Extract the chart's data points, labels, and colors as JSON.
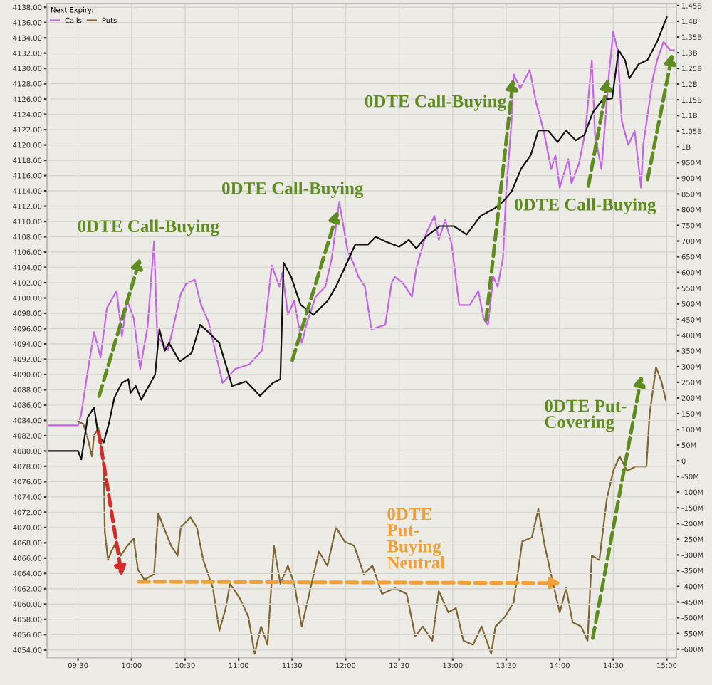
{
  "chart_data": {
    "type": "line",
    "legend_title": "Next Expiry:",
    "series": [
      {
        "color": "#111111",
        "x": [
          9.23,
          9.5,
          9.53,
          9.59,
          9.65,
          9.69,
          9.74,
          9.79,
          9.84,
          9.91,
          9.97,
          9.99,
          10.04,
          10.09,
          10.22,
          10.26,
          10.31,
          10.35,
          10.45,
          10.56,
          10.64,
          10.73,
          10.82,
          10.94,
          11.07,
          11.2,
          11.32,
          11.39,
          11.42,
          11.49,
          11.58,
          11.7,
          11.83,
          11.91,
          11.99,
          12.09,
          12.21,
          12.28,
          12.37,
          12.5,
          12.59,
          12.66,
          12.75,
          12.88,
          13.01,
          13.13,
          13.26,
          13.39,
          13.47,
          13.55,
          13.64,
          13.73,
          13.8,
          13.89,
          13.98,
          14.06,
          14.15,
          14.23,
          14.31,
          14.4,
          14.49,
          14.55,
          14.61,
          14.65,
          14.74,
          14.82,
          14.91,
          15.0
        ],
        "values": [
          4080,
          4080,
          4078.9,
          4084.4,
          4085.7,
          4082,
          4081.1,
          4083.7,
          4087,
          4088.9,
          4089.4,
          4087.6,
          4088.5,
          4086.7,
          4090,
          4095.9,
          4093.1,
          4094.1,
          4091.7,
          4092.8,
          4096.5,
          4095.4,
          4094.1,
          4088.5,
          4089.1,
          4087.2,
          4088.9,
          4089.4,
          4104.6,
          4102.8,
          4099.1,
          4097.8,
          4099.6,
          4101.5,
          4103.9,
          4107,
          4107,
          4108,
          4107.4,
          4106.7,
          4107.6,
          4106.5,
          4108,
          4109.4,
          4109.4,
          4108.3,
          4110.7,
          4111.7,
          4112.6,
          4113.9,
          4116.9,
          4118.7,
          4121.9,
          4121.9,
          4120.4,
          4121.9,
          4120.6,
          4121.3,
          4124.3,
          4125.9,
          4126.1,
          4132.4,
          4131.1,
          4128.7,
          4130.6,
          4131.1,
          4133.5,
          4136.7
        ]
      },
      {
        "name": "Calls",
        "color": "#c563e6",
        "axis": "y2",
        "x": [
          9.23,
          9.5,
          9.53,
          9.59,
          9.65,
          9.71,
          9.77,
          9.86,
          9.91,
          9.96,
          10.02,
          10.08,
          10.15,
          10.21,
          10.24,
          10.29,
          10.34,
          10.4,
          10.46,
          10.51,
          10.59,
          10.65,
          10.72,
          10.78,
          10.85,
          10.91,
          10.97,
          11.1,
          11.22,
          11.31,
          11.38,
          11.41,
          11.46,
          11.52,
          11.59,
          11.64,
          11.72,
          11.81,
          11.87,
          11.94,
          12.02,
          12.07,
          12.12,
          12.18,
          12.24,
          12.37,
          12.43,
          12.46,
          12.53,
          12.62,
          12.66,
          12.75,
          12.83,
          12.87,
          12.93,
          12.99,
          13.06,
          13.1,
          13.16,
          13.24,
          13.29,
          13.33,
          13.38,
          13.42,
          13.47,
          13.5,
          13.55,
          13.57,
          13.63,
          13.72,
          13.78,
          13.85,
          13.92,
          13.96,
          14.0,
          14.08,
          14.11,
          14.18,
          14.24,
          14.3,
          14.33,
          14.39,
          14.46,
          14.5,
          14.54,
          14.58,
          14.64,
          14.7,
          14.76,
          14.78,
          14.87,
          14.91,
          14.97,
          15.03,
          15.07
        ],
        "values": [
          113000000.0,
          113000000.0,
          149000000.0,
          284000000.0,
          410000000.0,
          329000000.0,
          487000000.0,
          541000000.0,
          397000000.0,
          510000000.0,
          455000000.0,
          293000000.0,
          428000000.0,
          699000000.0,
          397000000.0,
          374000000.0,
          352000000.0,
          442000000.0,
          532000000.0,
          564000000.0,
          577000000.0,
          496000000.0,
          442000000.0,
          352000000.0,
          248000000.0,
          271000000.0,
          293000000.0,
          307000000.0,
          352000000.0,
          622000000.0,
          555000000.0,
          600000000.0,
          465000000.0,
          510000000.0,
          374000000.0,
          442000000.0,
          523000000.0,
          555000000.0,
          645000000.0,
          825000000.0,
          667000000.0,
          631000000.0,
          586000000.0,
          555000000.0,
          419000000.0,
          433000000.0,
          568000000.0,
          586000000.0,
          568000000.0,
          523000000.0,
          613000000.0,
          722000000.0,
          780000000.0,
          704000000.0,
          767000000.0,
          690000000.0,
          496000000.0,
          496000000.0,
          496000000.0,
          541000000.0,
          451000000.0,
          433000000.0,
          586000000.0,
          555000000.0,
          645000000.0,
          857000000.0,
          1082000000.0,
          1231000000.0,
          1186000000.0,
          1245000000.0,
          1141000000.0,
          1051000000.0,
          929000000.0,
          974000000.0,
          870000000.0,
          961000000.0,
          884000000.0,
          947000000.0,
          1051000000.0,
          1276000000.0,
          1037000000.0,
          929000000.0,
          1231000000.0,
          1367000000.0,
          1308000000.0,
          1082000000.0,
          1006000000.0,
          1051000000.0,
          870000000.0,
          1006000000.0,
          1218000000.0,
          1276000000.0,
          1335000000.0,
          1308000000.0,
          1308000000.0
        ]
      },
      {
        "name": "Puts",
        "color": "#7d6431",
        "axis": "y2",
        "x": [
          9.5,
          9.55,
          9.59,
          9.63,
          9.65,
          9.69,
          9.74,
          9.75,
          9.78,
          9.81,
          9.86,
          9.9,
          9.96,
          10.02,
          10.06,
          10.12,
          10.21,
          10.25,
          10.3,
          10.37,
          10.43,
          10.46,
          10.55,
          10.61,
          10.67,
          10.76,
          10.82,
          10.88,
          10.92,
          11.01,
          11.09,
          11.15,
          11.21,
          11.27,
          11.33,
          11.39,
          11.46,
          11.52,
          11.59,
          11.66,
          11.75,
          11.83,
          11.91,
          11.99,
          12.08,
          12.17,
          12.25,
          12.34,
          12.46,
          12.57,
          12.65,
          12.72,
          12.81,
          12.87,
          12.96,
          13.03,
          13.1,
          13.19,
          13.27,
          13.36,
          13.4,
          13.49,
          13.57,
          13.65,
          13.74,
          13.8,
          13.86,
          13.93,
          14.0,
          14.06,
          14.12,
          14.2,
          14.26,
          14.3,
          14.37,
          14.44,
          14.5,
          14.56,
          14.63,
          14.71,
          14.81,
          14.84,
          14.9,
          14.95,
          14.99
        ],
        "values": [
          126000000.0,
          117000000.0,
          72000000.0,
          14000000.0,
          81000000.0,
          104000000.0,
          -18000000.0,
          -226000000.0,
          -316000000.0,
          -289000000.0,
          -257000000.0,
          -302000000.0,
          -271000000.0,
          -248000000.0,
          -347000000.0,
          -379000000.0,
          -361000000.0,
          -167000000.0,
          -212000000.0,
          -271000000.0,
          -302000000.0,
          -212000000.0,
          -180000000.0,
          -212000000.0,
          -316000000.0,
          -406000000.0,
          -541000000.0,
          -469000000.0,
          -392000000.0,
          -437000000.0,
          -496000000.0,
          -615000000.0,
          -528000000.0,
          -586000000.0,
          -271000000.0,
          -392000000.0,
          -334000000.0,
          -392000000.0,
          -528000000.0,
          -424000000.0,
          -289000000.0,
          -334000000.0,
          -212000000.0,
          -257000000.0,
          -271000000.0,
          -361000000.0,
          -334000000.0,
          -424000000.0,
          -406000000.0,
          -424000000.0,
          -559000000.0,
          -528000000.0,
          -573000000.0,
          -415000000.0,
          -483000000.0,
          -469000000.0,
          -573000000.0,
          -586000000.0,
          -528000000.0,
          -615000000.0,
          -528000000.0,
          -496000000.0,
          -451000000.0,
          -257000000.0,
          -244000000.0,
          -153000000.0,
          -271000000.0,
          -379000000.0,
          -483000000.0,
          -406000000.0,
          -514000000.0,
          -528000000.0,
          -573000000.0,
          -302000000.0,
          -316000000.0,
          -122000000.0,
          -32000000.0,
          14000000.0,
          -32000000.0,
          -18000000.0,
          -18000000.0,
          149000000.0,
          298000000.0,
          253000000.0,
          194000000.0
        ]
      }
    ],
    "xlim": [
      9.21,
      15.09
    ],
    "xticks": [
      {
        "value": 9.5,
        "label": "09:30"
      },
      {
        "value": 10,
        "label": "10:00"
      },
      {
        "value": 10.5,
        "label": "10:30"
      },
      {
        "value": 11,
        "label": "11:00"
      },
      {
        "value": 11.5,
        "label": "11:30"
      },
      {
        "value": 12,
        "label": "12:00"
      },
      {
        "value": 12.5,
        "label": "12:30"
      },
      {
        "value": 13,
        "label": "13:00"
      },
      {
        "value": 13.5,
        "label": "13:30"
      },
      {
        "value": 14,
        "label": "14:00"
      },
      {
        "value": 14.5,
        "label": "14:30"
      },
      {
        "value": 15,
        "label": "15:00"
      }
    ],
    "ylim": [
      4053,
      4138.5
    ],
    "yticks": [
      {
        "value": 4054,
        "label": "4054.00"
      },
      {
        "value": 4056,
        "label": "4056.00"
      },
      {
        "value": 4058,
        "label": "4058.00"
      },
      {
        "value": 4060,
        "label": "4060.00"
      },
      {
        "value": 4062,
        "label": "4062.00"
      },
      {
        "value": 4064,
        "label": "4064.00"
      },
      {
        "value": 4066,
        "label": "4066.00"
      },
      {
        "value": 4068,
        "label": "4068.00"
      },
      {
        "value": 4070,
        "label": "4070.00"
      },
      {
        "value": 4072,
        "label": "4072.00"
      },
      {
        "value": 4074,
        "label": "4074.00"
      },
      {
        "value": 4076,
        "label": "4076.00"
      },
      {
        "value": 4078,
        "label": "4078.00"
      },
      {
        "value": 4080,
        "label": "4080.00"
      },
      {
        "value": 4082,
        "label": "4082.00"
      },
      {
        "value": 4084,
        "label": "4084.00"
      },
      {
        "value": 4086,
        "label": "4086.00"
      },
      {
        "value": 4088,
        "label": "4088.00"
      },
      {
        "value": 4090,
        "label": "4090.00"
      },
      {
        "value": 4092,
        "label": "4092.00"
      },
      {
        "value": 4094,
        "label": "4094.00"
      },
      {
        "value": 4096,
        "label": "4096.00"
      },
      {
        "value": 4098,
        "label": "4098.00"
      },
      {
        "value": 4100,
        "label": "4100.00"
      },
      {
        "value": 4102,
        "label": "4102.00"
      },
      {
        "value": 4104,
        "label": "4104.00"
      },
      {
        "value": 4106,
        "label": "4106.00"
      },
      {
        "value": 4108,
        "label": "4108.00"
      },
      {
        "value": 4110,
        "label": "4110.00"
      },
      {
        "value": 4112,
        "label": "4112.00"
      },
      {
        "value": 4114,
        "label": "4114.00"
      },
      {
        "value": 4116,
        "label": "4116.00"
      },
      {
        "value": 4118,
        "label": "4118.00"
      },
      {
        "value": 4120,
        "label": "4120.00"
      },
      {
        "value": 4122,
        "label": "4122.00"
      },
      {
        "value": 4124,
        "label": "4124.00"
      },
      {
        "value": 4126,
        "label": "4126.00"
      },
      {
        "value": 4128,
        "label": "4128.00"
      },
      {
        "value": 4130,
        "label": "4130.00"
      },
      {
        "value": 4132,
        "label": "4132.00"
      },
      {
        "value": 4134,
        "label": "4134.00"
      },
      {
        "value": 4136,
        "label": "4136.00"
      },
      {
        "value": 4138,
        "label": "4138.00"
      }
    ],
    "y2lim": [
      -627000000.0,
      1457000000.0
    ],
    "y2ticks": [
      {
        "value": -600000000.0,
        "label": "-600M"
      },
      {
        "value": -550000000.0,
        "label": "-550M"
      },
      {
        "value": -500000000.0,
        "label": "-500M"
      },
      {
        "value": -450000000.0,
        "label": "-450M"
      },
      {
        "value": -400000000.0,
        "label": "-400M"
      },
      {
        "value": -350000000.0,
        "label": "-350M"
      },
      {
        "value": -300000000.0,
        "label": "-300M"
      },
      {
        "value": -250000000.0,
        "label": "-250M"
      },
      {
        "value": -200000000.0,
        "label": "-200M"
      },
      {
        "value": -150000000.0,
        "label": "-150M"
      },
      {
        "value": -100000000.0,
        "label": "-100M"
      },
      {
        "value": -50000000.0,
        "label": "-50M"
      },
      0,
      {
        "value": 50000000.0,
        "label": "50M"
      },
      {
        "value": 100000000.0,
        "label": "100M"
      },
      {
        "value": 150000000.0,
        "label": "150M"
      },
      {
        "value": 200000000.0,
        "label": "200M"
      },
      {
        "value": 250000000.0,
        "label": "250M"
      },
      {
        "value": 300000000.0,
        "label": "300M"
      },
      {
        "value": 350000000.0,
        "label": "350M"
      },
      {
        "value": 400000000.0,
        "label": "400M"
      },
      {
        "value": 450000000.0,
        "label": "450M"
      },
      {
        "value": 500000000.0,
        "label": "500M"
      },
      {
        "value": 550000000.0,
        "label": "550M"
      },
      {
        "value": 600000000.0,
        "label": "600M"
      },
      {
        "value": 650000000.0,
        "label": "650M"
      },
      {
        "value": 700000000.0,
        "label": "700M"
      },
      {
        "value": 750000000.0,
        "label": "750M"
      },
      {
        "value": 800000000.0,
        "label": "800M"
      },
      {
        "value": 850000000.0,
        "label": "850M"
      },
      {
        "value": 900000000.0,
        "label": "900M"
      },
      {
        "value": 950000000.0,
        "label": "950M"
      },
      {
        "value": 1000000000.0,
        "label": "1B"
      },
      {
        "value": 1050000000.0,
        "label": "1.05B"
      },
      {
        "value": 1100000000.0,
        "label": "1.1B"
      },
      {
        "value": 1150000000.0,
        "label": "1.15B"
      },
      {
        "value": 1200000000.0,
        "label": "1.2B"
      },
      {
        "value": 1250000000.0,
        "label": "1.25B"
      },
      {
        "value": 1300000000.0,
        "label": "1.3B"
      },
      {
        "value": 1350000000.0,
        "label": "1.35B"
      },
      {
        "value": 1400000000.0,
        "label": "1.4B"
      },
      {
        "value": 1450000000.0,
        "label": "1.45B"
      }
    ],
    "annotations": [
      "0DTE Call-Buying",
      "0DTE Call-Buying",
      {
        "text": "0DTE Call-Buying",
        "x": 13.57,
        "y": 4129.2
      },
      {
        "text": "0DTE Call-Buying",
        "x": 14.46,
        "y": 4129.2
      },
      "0DTE Put-\nCovering",
      "0DTE\nPut-\nBuying\nNeutral"
    ],
    "grid": true,
    "legend": "top left",
    "line_style": "solid"
  }
}
